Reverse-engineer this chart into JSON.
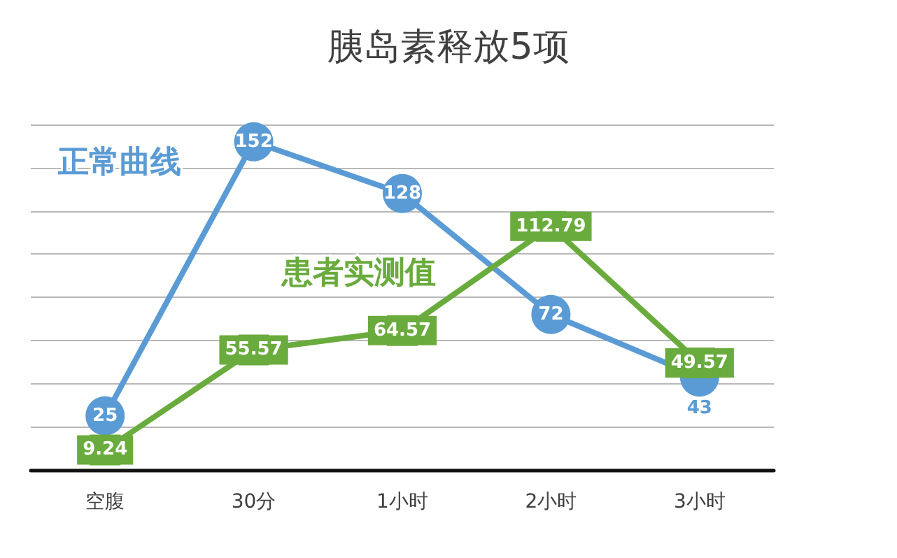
{
  "chart_data": {
    "type": "line",
    "title": "胰岛素释放5项",
    "categories": [
      "空腹",
      "30分",
      "1小时",
      "2小时",
      "3小时"
    ],
    "series": [
      {
        "name": "正常曲线",
        "color": "#5b9bd5",
        "marker": "circle",
        "values": [
          25,
          152,
          128,
          72,
          43
        ]
      },
      {
        "name": "患者实测值",
        "color": "#6aab3d",
        "marker": "square",
        "values": [
          9.24,
          55.57,
          64.57,
          112.79,
          49.57
        ]
      }
    ],
    "ylim": [
      0,
      160
    ],
    "yticks": [
      {
        "value": 0,
        "label": null
      },
      {
        "value": 20,
        "label": null
      },
      {
        "value": 40,
        "label": null
      },
      {
        "value": 60,
        "label": null
      },
      {
        "value": 80,
        "label": null
      },
      {
        "value": 100,
        "label": null
      },
      {
        "value": 120,
        "label": null
      },
      {
        "value": 140,
        "label": null
      },
      {
        "value": 160,
        "label": null
      }
    ],
    "grid": "y",
    "legend": false,
    "tick_labels": "x",
    "data_labels": true,
    "line_style": "solid"
  }
}
